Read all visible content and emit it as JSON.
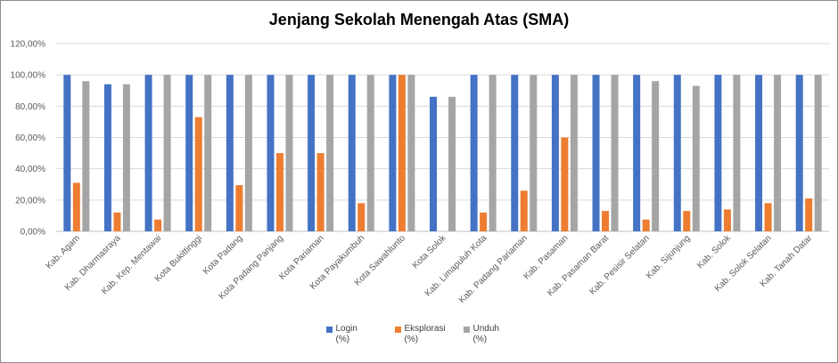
{
  "chart_data": {
    "type": "bar",
    "title": "Jenjang Sekolah Menengah Atas (SMA)",
    "xlabel": "",
    "ylabel": "",
    "ylim": [
      0,
      120
    ],
    "yticks": [
      "0,00%",
      "20,00%",
      "40,00%",
      "60,00%",
      "80,00%",
      "100,00%",
      "120,00%"
    ],
    "grid": true,
    "legend_position": "bottom",
    "categories": [
      "Kab. Agam",
      "Kab. Dharmasraya",
      "Kab. Kep. Mentawai",
      "Kota Bukittinggi",
      "Kota Padang",
      "Kota Padang Panjang",
      "Kota Pariaman",
      "Kota Payakumbuh",
      "Kota Sawahlunto",
      "Kota Solok",
      "Kab. Limapuluh Kota",
      "Kab. Padang Pariaman",
      "Kab. Pasaman",
      "Kab. Pasaman Barat",
      "Kab. Pesisir Selatan",
      "Kab. Sijunjung",
      "Kab. Solok",
      "Kab. Solok Selatan",
      "Kab. Tanah Datar"
    ],
    "series": [
      {
        "name": "Login\n(%)",
        "color": "#4472C4",
        "values": [
          100,
          94,
          100,
          100,
          100,
          100,
          100,
          100,
          100,
          86,
          100,
          100,
          100,
          100,
          100,
          100,
          100,
          100,
          100
        ]
      },
      {
        "name": "Eksplorasi\n(%)",
        "color": "#ED7D31",
        "values": [
          31,
          12,
          7.5,
          73,
          29.5,
          50,
          50,
          18,
          100,
          0,
          12,
          26,
          60,
          13,
          7.5,
          13,
          14,
          18,
          21
        ]
      },
      {
        "name": "Unduh\n(%)",
        "color": "#A5A5A5",
        "values": [
          96,
          94,
          100,
          100,
          100,
          100,
          100,
          100,
          100,
          86,
          100,
          100,
          100,
          100,
          96,
          93,
          100,
          100,
          100
        ]
      }
    ]
  }
}
